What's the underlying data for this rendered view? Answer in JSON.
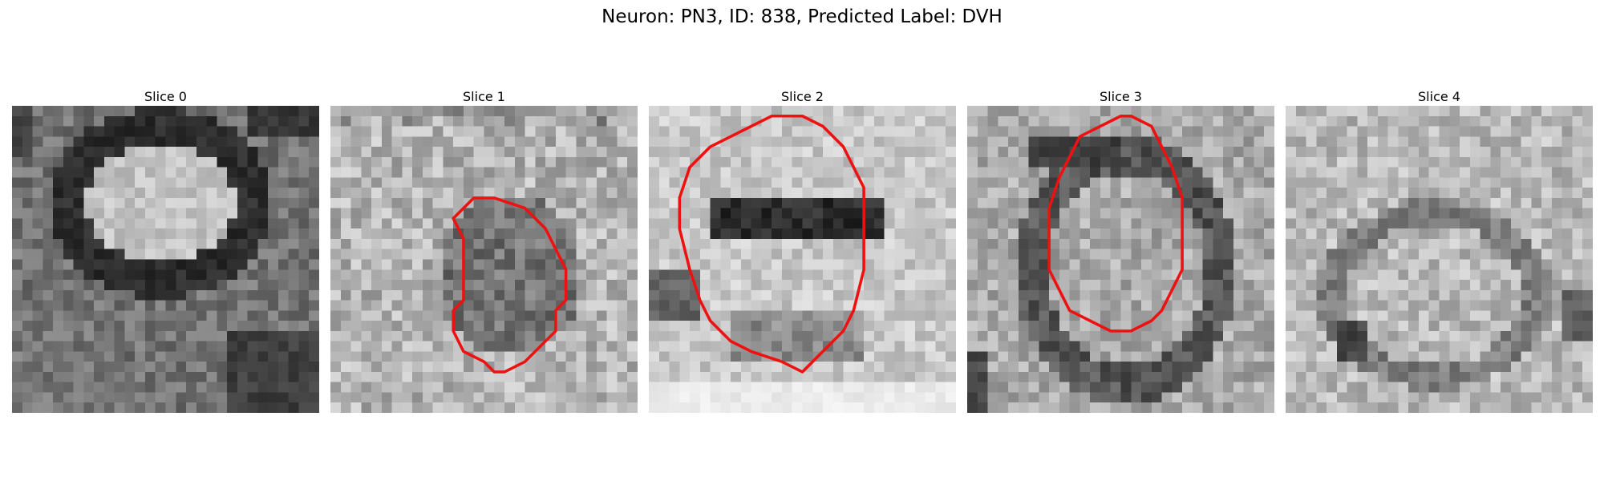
{
  "figure": {
    "title": "Neuron: PN3, ID: 838, Predicted Label: DVH",
    "slices": [
      {
        "title": "Slice 0",
        "contour": null
      },
      {
        "title": "Slice 1",
        "contour": [
          [
            13,
            10
          ],
          [
            14,
            9
          ],
          [
            16,
            9
          ],
          [
            19,
            10
          ],
          [
            20,
            11
          ],
          [
            21,
            12
          ],
          [
            22,
            14
          ],
          [
            23,
            16
          ],
          [
            23,
            19
          ],
          [
            22,
            20
          ],
          [
            22,
            22
          ],
          [
            21,
            23
          ],
          [
            20,
            24
          ],
          [
            19,
            25
          ],
          [
            17,
            26
          ],
          [
            16,
            26
          ],
          [
            15,
            25
          ],
          [
            13,
            24
          ],
          [
            12,
            22
          ],
          [
            12,
            20
          ],
          [
            13,
            19
          ],
          [
            13,
            16
          ],
          [
            13,
            13
          ],
          [
            12,
            11
          ]
        ]
      },
      {
        "title": "Slice 2",
        "contour": [
          [
            4,
            6
          ],
          [
            6,
            4
          ],
          [
            8,
            3
          ],
          [
            10,
            2
          ],
          [
            12,
            1
          ],
          [
            15,
            1
          ],
          [
            17,
            2
          ],
          [
            19,
            4
          ],
          [
            20,
            6
          ],
          [
            21,
            8
          ],
          [
            21,
            12
          ],
          [
            21,
            16
          ],
          [
            20,
            20
          ],
          [
            19,
            22
          ],
          [
            17,
            24
          ],
          [
            15,
            26
          ],
          [
            13,
            25
          ],
          [
            10,
            24
          ],
          [
            8,
            23
          ],
          [
            6,
            21
          ],
          [
            5,
            19
          ],
          [
            4,
            16
          ],
          [
            3,
            12
          ],
          [
            3,
            9
          ]
        ]
      },
      {
        "title": "Slice 3",
        "contour": [
          [
            10,
            5
          ],
          [
            11,
            3
          ],
          [
            13,
            2
          ],
          [
            15,
            1
          ],
          [
            16,
            1
          ],
          [
            18,
            2
          ],
          [
            19,
            4
          ],
          [
            20,
            6
          ],
          [
            21,
            9
          ],
          [
            21,
            12
          ],
          [
            21,
            16
          ],
          [
            20,
            18
          ],
          [
            19,
            20
          ],
          [
            18,
            21
          ],
          [
            16,
            22
          ],
          [
            14,
            22
          ],
          [
            12,
            21
          ],
          [
            10,
            20
          ],
          [
            9,
            18
          ],
          [
            8,
            16
          ],
          [
            8,
            13
          ],
          [
            8,
            10
          ],
          [
            9,
            7
          ]
        ]
      },
      {
        "title": "Slice 4",
        "contour": null
      }
    ]
  }
}
